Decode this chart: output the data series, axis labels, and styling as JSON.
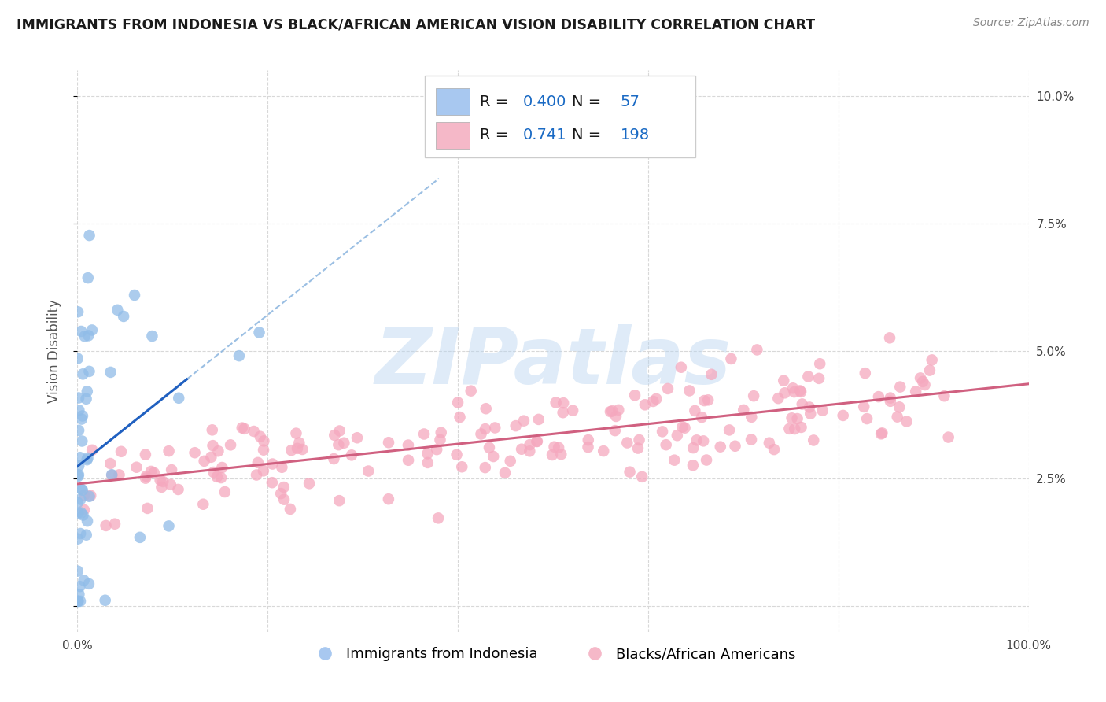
{
  "title": "IMMIGRANTS FROM INDONESIA VS BLACK/AFRICAN AMERICAN VISION DISABILITY CORRELATION CHART",
  "source": "Source: ZipAtlas.com",
  "ylabel": "Vision Disability",
  "watermark": "ZIPatlas",
  "legend_entries": [
    {
      "label": "Immigrants from Indonesia",
      "color": "#a8c8f0",
      "R": 0.4,
      "N": 57
    },
    {
      "label": "Blacks/African Americans",
      "color": "#f5b8c8",
      "R": 0.741,
      "N": 198
    }
  ],
  "xlim": [
    0.0,
    1.0
  ],
  "ylim": [
    -0.005,
    0.105
  ],
  "x_ticks": [
    0.0,
    0.2,
    0.4,
    0.6,
    0.8,
    1.0
  ],
  "x_tick_labels": [
    "0.0%",
    "",
    "",
    "",
    "",
    "100.0%"
  ],
  "y_ticks": [
    0.0,
    0.025,
    0.05,
    0.075,
    0.1
  ],
  "y_tick_labels": [
    "",
    "2.5%",
    "5.0%",
    "7.5%",
    "10.0%"
  ],
  "blue_scatter_color": "#90bce8",
  "blue_line_color": "#2060c0",
  "pink_scatter_color": "#f5a8be",
  "pink_line_color": "#d06080",
  "dashed_color": "#90b8e0",
  "background_color": "#ffffff",
  "grid_color": "#d8d8d8",
  "blue_R": 0.4,
  "blue_N": 57,
  "pink_R": 0.741,
  "pink_N": 198,
  "blue_seed": 12,
  "pink_seed": 99
}
